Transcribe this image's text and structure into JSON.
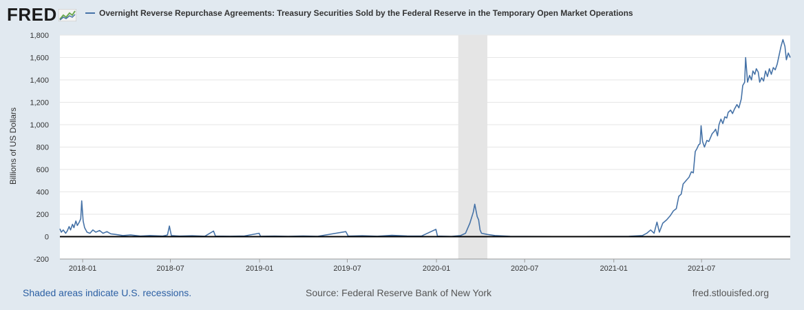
{
  "logo": {
    "text": "FRED",
    "icon": "fred-chart-icon"
  },
  "footer": {
    "recession_note": "Shaded areas indicate U.S. recessions.",
    "source": "Source: Federal Reserve Bank of New York",
    "site": "fred.stlouisfed.org"
  },
  "colors": {
    "line": "#4572a7",
    "background": "#e1e9f0",
    "plot": "#ffffff",
    "recession": "#e5e5e5",
    "link": "#2b5fa3"
  },
  "chart_data": {
    "type": "line",
    "title": "Overnight Reverse Repurchase Agreements: Treasury Securities Sold by the Federal Reserve in the Temporary Open Market Operations",
    "ylabel": "Billions of US Dollars",
    "xlabel": "",
    "ylim": [
      -200,
      1800
    ],
    "yticks": [
      -200,
      0,
      200,
      400,
      600,
      800,
      1000,
      1200,
      1400,
      1600,
      1800
    ],
    "ytick_labels": [
      "-200",
      "0",
      "200",
      "400",
      "600",
      "800",
      "1,000",
      "1,200",
      "1,400",
      "1,600",
      "1,800"
    ],
    "xlim": [
      "2017-11-15",
      "2021-12-31"
    ],
    "xticks": [
      "2018-01-01",
      "2018-07-01",
      "2019-01-01",
      "2019-07-01",
      "2020-01-01",
      "2020-07-01",
      "2021-01-01",
      "2021-07-01"
    ],
    "xtick_labels": [
      "2018-01",
      "2018-07",
      "2019-01",
      "2019-07",
      "2020-01",
      "2020-07",
      "2021-01",
      "2021-07"
    ],
    "recession": {
      "start": "2020-02-15",
      "end": "2020-04-15"
    },
    "grid": true,
    "legend_position": "top-left",
    "series": [
      {
        "name": "Overnight Reverse Repurchase Agreements: Treasury Securities Sold by the Federal Reserve in the Temporary Open Market Operations",
        "points": [
          [
            "2017-11-15",
            70
          ],
          [
            "2017-11-18",
            40
          ],
          [
            "2017-11-22",
            60
          ],
          [
            "2017-11-27",
            30
          ],
          [
            "2017-11-30",
            50
          ],
          [
            "2017-12-04",
            90
          ],
          [
            "2017-12-07",
            60
          ],
          [
            "2017-12-11",
            110
          ],
          [
            "2017-12-14",
            80
          ],
          [
            "2017-12-18",
            140
          ],
          [
            "2017-12-21",
            100
          ],
          [
            "2017-12-25",
            130
          ],
          [
            "2017-12-28",
            160
          ],
          [
            "2017-12-30",
            320
          ],
          [
            "2018-01-02",
            140
          ],
          [
            "2018-01-05",
            80
          ],
          [
            "2018-01-10",
            40
          ],
          [
            "2018-01-16",
            30
          ],
          [
            "2018-01-22",
            60
          ],
          [
            "2018-01-28",
            40
          ],
          [
            "2018-02-05",
            55
          ],
          [
            "2018-02-12",
            30
          ],
          [
            "2018-02-20",
            45
          ],
          [
            "2018-02-28",
            25
          ],
          [
            "2018-03-10",
            20
          ],
          [
            "2018-03-25",
            10
          ],
          [
            "2018-04-10",
            15
          ],
          [
            "2018-04-30",
            5
          ],
          [
            "2018-05-20",
            10
          ],
          [
            "2018-06-15",
            5
          ],
          [
            "2018-06-25",
            15
          ],
          [
            "2018-06-29",
            95
          ],
          [
            "2018-07-03",
            10
          ],
          [
            "2018-07-20",
            5
          ],
          [
            "2018-08-15",
            8
          ],
          [
            "2018-09-10",
            4
          ],
          [
            "2018-09-28",
            50
          ],
          [
            "2018-10-02",
            5
          ],
          [
            "2018-11-01",
            4
          ],
          [
            "2018-12-01",
            6
          ],
          [
            "2018-12-31",
            30
          ],
          [
            "2019-01-03",
            3
          ],
          [
            "2019-02-01",
            5
          ],
          [
            "2019-03-01",
            3
          ],
          [
            "2019-04-01",
            6
          ],
          [
            "2019-05-01",
            3
          ],
          [
            "2019-06-28",
            45
          ],
          [
            "2019-07-03",
            5
          ],
          [
            "2019-08-01",
            8
          ],
          [
            "2019-09-01",
            4
          ],
          [
            "2019-10-01",
            12
          ],
          [
            "2019-11-01",
            6
          ],
          [
            "2019-12-01",
            5
          ],
          [
            "2019-12-31",
            65
          ],
          [
            "2020-01-03",
            5
          ],
          [
            "2020-02-01",
            2
          ],
          [
            "2020-02-20",
            10
          ],
          [
            "2020-03-01",
            30
          ],
          [
            "2020-03-10",
            120
          ],
          [
            "2020-03-17",
            220
          ],
          [
            "2020-03-20",
            290
          ],
          [
            "2020-03-25",
            180
          ],
          [
            "2020-03-28",
            150
          ],
          [
            "2020-03-31",
            60
          ],
          [
            "2020-04-03",
            30
          ],
          [
            "2020-04-15",
            20
          ],
          [
            "2020-05-01",
            10
          ],
          [
            "2020-06-01",
            3
          ],
          [
            "2020-07-01",
            2
          ],
          [
            "2020-09-01",
            1
          ],
          [
            "2020-11-01",
            1
          ],
          [
            "2021-01-01",
            2
          ],
          [
            "2021-02-01",
            3
          ],
          [
            "2021-03-01",
            10
          ],
          [
            "2021-03-10",
            30
          ],
          [
            "2021-03-18",
            60
          ],
          [
            "2021-03-25",
            30
          ],
          [
            "2021-03-31",
            130
          ],
          [
            "2021-04-05",
            40
          ],
          [
            "2021-04-12",
            120
          ],
          [
            "2021-04-20",
            150
          ],
          [
            "2021-04-28",
            190
          ],
          [
            "2021-05-04",
            230
          ],
          [
            "2021-05-10",
            250
          ],
          [
            "2021-05-15",
            360
          ],
          [
            "2021-05-20",
            380
          ],
          [
            "2021-05-24",
            470
          ],
          [
            "2021-05-28",
            490
          ],
          [
            "2021-06-01",
            510
          ],
          [
            "2021-06-05",
            530
          ],
          [
            "2021-06-10",
            580
          ],
          [
            "2021-06-14",
            570
          ],
          [
            "2021-06-18",
            760
          ],
          [
            "2021-06-22",
            790
          ],
          [
            "2021-06-25",
            820
          ],
          [
            "2021-06-28",
            830
          ],
          [
            "2021-06-30",
            990
          ],
          [
            "2021-07-03",
            850
          ],
          [
            "2021-07-07",
            800
          ],
          [
            "2021-07-12",
            860
          ],
          [
            "2021-07-16",
            850
          ],
          [
            "2021-07-20",
            890
          ],
          [
            "2021-07-23",
            920
          ],
          [
            "2021-07-27",
            940
          ],
          [
            "2021-07-30",
            960
          ],
          [
            "2021-08-03",
            900
          ],
          [
            "2021-08-06",
            1000
          ],
          [
            "2021-08-10",
            1050
          ],
          [
            "2021-08-14",
            1010
          ],
          [
            "2021-08-18",
            1070
          ],
          [
            "2021-08-22",
            1060
          ],
          [
            "2021-08-25",
            1110
          ],
          [
            "2021-08-30",
            1130
          ],
          [
            "2021-09-03",
            1100
          ],
          [
            "2021-09-07",
            1140
          ],
          [
            "2021-09-12",
            1180
          ],
          [
            "2021-09-16",
            1150
          ],
          [
            "2021-09-21",
            1230
          ],
          [
            "2021-09-24",
            1350
          ],
          [
            "2021-09-28",
            1380
          ],
          [
            "2021-09-30",
            1600
          ],
          [
            "2021-10-04",
            1380
          ],
          [
            "2021-10-08",
            1440
          ],
          [
            "2021-10-12",
            1400
          ],
          [
            "2021-10-15",
            1480
          ],
          [
            "2021-10-19",
            1450
          ],
          [
            "2021-10-22",
            1500
          ],
          [
            "2021-10-26",
            1470
          ],
          [
            "2021-10-29",
            1380
          ],
          [
            "2021-11-02",
            1420
          ],
          [
            "2021-11-06",
            1390
          ],
          [
            "2021-11-10",
            1480
          ],
          [
            "2021-11-14",
            1430
          ],
          [
            "2021-11-18",
            1500
          ],
          [
            "2021-11-22",
            1450
          ],
          [
            "2021-11-26",
            1510
          ],
          [
            "2021-11-30",
            1490
          ],
          [
            "2021-12-04",
            1540
          ],
          [
            "2021-12-08",
            1620
          ],
          [
            "2021-12-12",
            1700
          ],
          [
            "2021-12-16",
            1760
          ],
          [
            "2021-12-20",
            1700
          ],
          [
            "2021-12-23",
            1580
          ],
          [
            "2021-12-27",
            1640
          ],
          [
            "2021-12-31",
            1600
          ]
        ]
      }
    ]
  }
}
